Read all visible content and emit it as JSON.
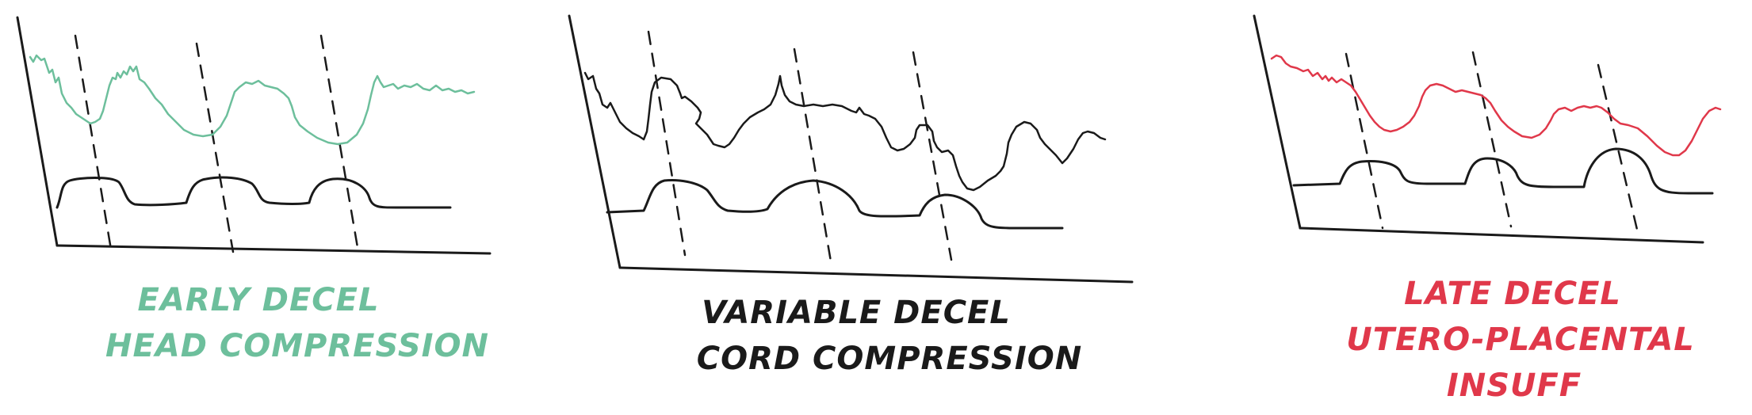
{
  "colors": {
    "early": "#6dbf9c",
    "variable": "#1a1a1a",
    "late": "#e0384a",
    "ink": "#1a1a1a"
  },
  "panels": [
    {
      "id": "early",
      "label_lines": [
        "EARLY DECEL",
        "HEAD COMPRESSION"
      ],
      "color_key": "early"
    },
    {
      "id": "variable",
      "label_lines": [
        "VARIABLE DECEL",
        "CORD COMPRESSION"
      ],
      "color_key": "variable"
    },
    {
      "id": "late",
      "label_lines": [
        "LATE DECEL",
        "UTERO-PLACENTAL",
        "INSUFF"
      ],
      "color_key": "late"
    }
  ]
}
